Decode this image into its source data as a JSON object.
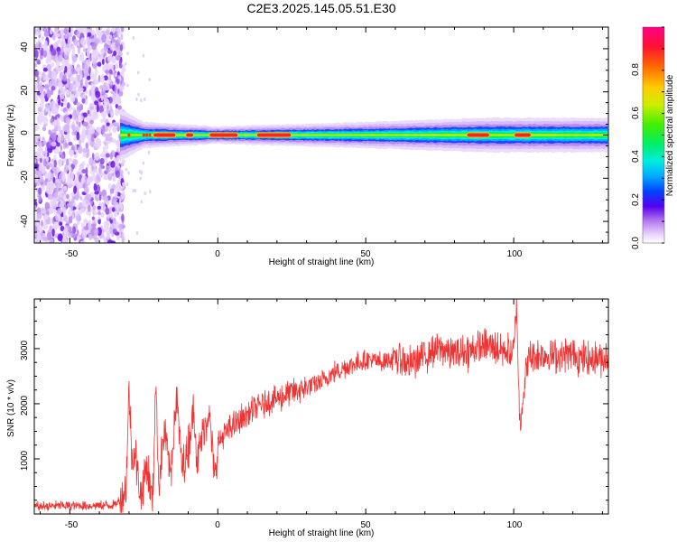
{
  "title": "C2E3.2025.145.05.51.E30",
  "chart_data": [
    {
      "type": "heatmap",
      "xlabel": "Height of straight line (km)",
      "ylabel": "Frequency (Hz)",
      "xlim": [
        -62,
        132
      ],
      "ylim": [
        -50,
        50
      ],
      "xticks": [
        -50,
        0,
        50,
        100
      ],
      "yticks": [
        -40,
        -20,
        0,
        20,
        40
      ],
      "colorbar": {
        "label": "Normalized spectral amplitude",
        "range": [
          0.0,
          1.0
        ],
        "ticks": [
          0.0,
          0.2,
          0.4,
          0.6,
          0.8
        ]
      },
      "noise_region_x": [
        -62,
        -33
      ],
      "signal_band": {
        "center_hz": 0,
        "start_x": -33,
        "width_profile": [
          {
            "x": -33,
            "halfwidth_hz": 6
          },
          {
            "x": -25,
            "halfwidth_hz": 3
          },
          {
            "x": 0,
            "halfwidth_hz": 2
          },
          {
            "x": 50,
            "halfwidth_hz": 3
          },
          {
            "x": 90,
            "halfwidth_hz": 4
          },
          {
            "x": 132,
            "halfwidth_hz": 4
          }
        ],
        "peak_segments": [
          [
            -22,
            -14
          ],
          [
            -11,
            -8
          ],
          [
            -3,
            7
          ],
          [
            13,
            25
          ],
          [
            84,
            92
          ],
          [
            100,
            106
          ]
        ]
      }
    },
    {
      "type": "line",
      "xlabel": "Height of straight line (km)",
      "ylabel": "SNR (10 * v/v)",
      "xlim": [
        -62,
        132
      ],
      "ylim": [
        0,
        3900
      ],
      "xticks": [
        -50,
        0,
        50,
        100
      ],
      "yticks": [
        1000,
        2000,
        3000
      ],
      "color": "#ee3333",
      "series": [
        {
          "x": [
            -62,
            -55,
            -45,
            -35,
            -33,
            -31,
            -30,
            -29,
            -28,
            -26,
            -24,
            -22,
            -21,
            -20,
            -18,
            -16,
            -14,
            -12,
            -10,
            -8,
            -7,
            -5,
            -3,
            -1,
            0,
            5,
            10,
            15,
            20,
            25,
            30,
            35,
            40,
            45,
            50,
            55,
            60,
            65,
            70,
            75,
            80,
            85,
            90,
            95,
            100,
            101,
            102,
            105,
            110,
            115,
            120,
            125,
            132
          ],
          "y": [
            130,
            150,
            150,
            160,
            250,
            500,
            2250,
            1000,
            1100,
            300,
            900,
            200,
            2500,
            600,
            1500,
            700,
            2150,
            800,
            1200,
            2000,
            900,
            1500,
            1900,
            600,
            1300,
            1600,
            1800,
            2000,
            2100,
            2200,
            2300,
            2400,
            2600,
            2700,
            2800,
            2750,
            2850,
            2700,
            2900,
            3000,
            2900,
            2950,
            3050,
            3000,
            2900,
            3850,
            1650,
            2850,
            2900,
            2850,
            2900,
            2800,
            2850
          ]
        }
      ]
    }
  ]
}
